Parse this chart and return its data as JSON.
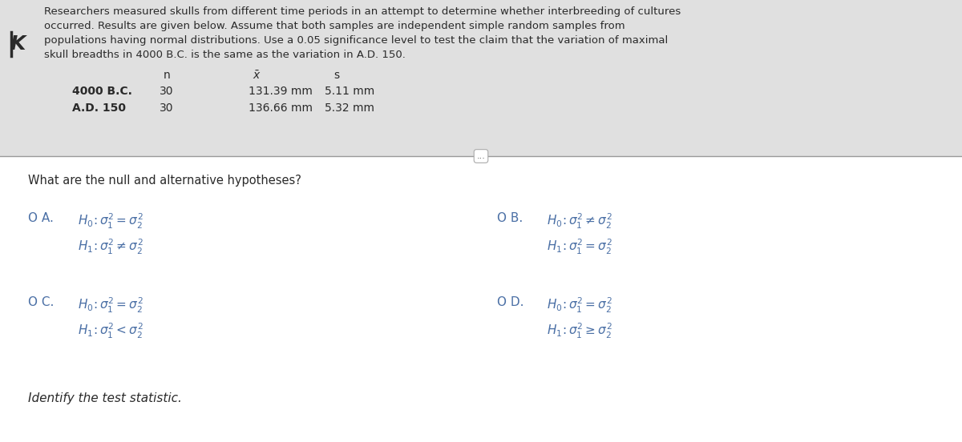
{
  "bg_color": "#ffffff",
  "panel_color": "#e8e8e8",
  "text_color": "#2a2a2a",
  "blue_color": "#4a6fa5",
  "intro_text_lines": [
    "Researchers measured skulls from different time periods in an attempt to determine whether interbreeding of cultures",
    "occurred. Results are given below. Assume that both samples are independent simple random samples from",
    "populations having normal distributions. Use a 0.05 significance level to test the claim that the variation of maximal",
    "skull breadths in 4000 B.C. is the same as the variation in A.D. 150."
  ],
  "row1_label": "4000 B.C.",
  "row2_label": "A.D. 150",
  "row1_data": [
    "30",
    "131.39 mm",
    "5.11 mm"
  ],
  "row2_data": [
    "30",
    "136.66 mm",
    "5.32 mm"
  ],
  "question": "What are the null and alternative hypotheses?",
  "option_A_label": "O A.",
  "option_A_H0": "$H_0\\!: \\sigma_1^2 = \\sigma_2^2$",
  "option_A_H1": "$H_1\\!: \\sigma_1^2 \\neq \\sigma_2^2$",
  "option_B_label": "O B.",
  "option_B_H0": "$H_0\\!: \\sigma_1^2 \\neq \\sigma_2^2$",
  "option_B_H1": "$H_1\\!: \\sigma_1^2 = \\sigma_2^2$",
  "option_C_label": "O C.",
  "option_C_H0": "$H_0\\!: \\sigma_1^2 = \\sigma_2^2$",
  "option_C_H1": "$H_1\\!: \\sigma_1^2 < \\sigma_2^2$",
  "option_D_label": "O D.",
  "option_D_H0": "$H_0\\!: \\sigma_1^2 = \\sigma_2^2$",
  "option_D_H1": "$H_1\\!: \\sigma_1^2 \\geq \\sigma_2^2$",
  "bottom_text": "Identify the test statistic.",
  "divider_dots": "...",
  "K_symbol": "K"
}
